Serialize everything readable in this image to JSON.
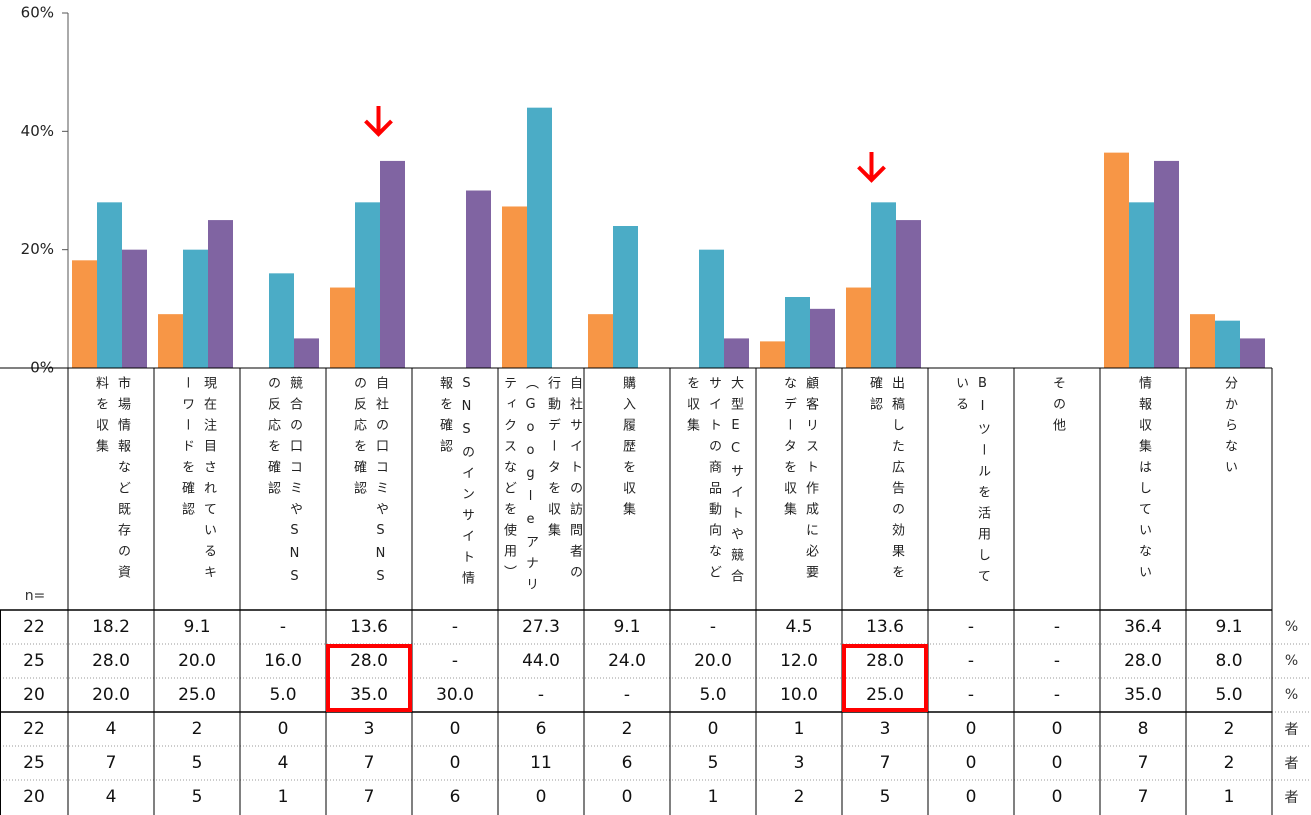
{
  "chart_data": {
    "type": "bar",
    "categories": [
      "市場情報など既存の資料を収集",
      "現在注目されているキーワードを確認",
      "競合の口コミやSNSの反応を確認",
      "自社の口コミやSNSの反応を確認",
      "SNSのインサイト情報を確認",
      "自社サイトの訪問者の行動データを収集（Googleアナリティクスなどを使用）",
      "購入履歴を収集",
      "大型ECサイトや競合サイトの商品動向などを収集",
      "顧客リスト作成に必要なデータを収集",
      "出稿した広告の効果を確認",
      "BIツールを活用している",
      "その他",
      "情報収集はしていない",
      "分からない"
    ],
    "series": [
      {
        "color": "#f79646",
        "values": [
          18.2,
          9.1,
          null,
          13.6,
          null,
          27.3,
          9.1,
          null,
          4.5,
          13.6,
          null,
          null,
          36.4,
          9.1
        ],
        "value_labels": [
          "18.2",
          "9.1",
          "-",
          "13.6",
          "-",
          "27.3",
          "9.1",
          "-",
          "4.5",
          "13.6",
          "-",
          "-",
          "36.4",
          "9.1"
        ]
      },
      {
        "color": "#4bacc6",
        "values": [
          28,
          20,
          16,
          28,
          null,
          44,
          24,
          20,
          12,
          28,
          null,
          null,
          28,
          8
        ],
        "value_labels": [
          "28.0",
          "20.0",
          "16.0",
          "28.0",
          "-",
          "44.0",
          "24.0",
          "20.0",
          "12.0",
          "28.0",
          "-",
          "-",
          "28.0",
          "8.0"
        ]
      },
      {
        "color": "#8064a2",
        "values": [
          20,
          25,
          5,
          35,
          30,
          null,
          null,
          5,
          10,
          25,
          null,
          null,
          35,
          5
        ],
        "value_labels": [
          "20.0",
          "25.0",
          "5.0",
          "35.0",
          "30.0",
          "-",
          "-",
          "5.0",
          "10.0",
          "25.0",
          "-",
          "-",
          "35.0",
          "5.0"
        ]
      }
    ],
    "ylim": [
      0,
      60
    ],
    "yticks": [
      {
        "value": 0,
        "label": "0%"
      },
      {
        "value": 20,
        "label": "20%"
      },
      {
        "value": 40,
        "label": "40%"
      },
      {
        "value": 60,
        "label": "60%"
      }
    ]
  },
  "table": {
    "n_header": "n=",
    "percent_rows": [
      {
        "n": 22,
        "unit": "%"
      },
      {
        "n": 25,
        "unit": "%"
      },
      {
        "n": 20,
        "unit": "%"
      }
    ],
    "count_rows": [
      {
        "n": 22,
        "unit": "者",
        "counts": [
          4,
          2,
          0,
          3,
          0,
          6,
          2,
          0,
          1,
          3,
          0,
          0,
          8,
          2
        ]
      },
      {
        "n": 25,
        "unit": "者",
        "counts": [
          7,
          5,
          4,
          7,
          0,
          11,
          6,
          5,
          3,
          7,
          0,
          0,
          7,
          2
        ]
      },
      {
        "n": 20,
        "unit": "者",
        "counts": [
          4,
          5,
          1,
          7,
          6,
          0,
          0,
          1,
          2,
          5,
          0,
          0,
          7,
          1
        ]
      }
    ]
  }
}
